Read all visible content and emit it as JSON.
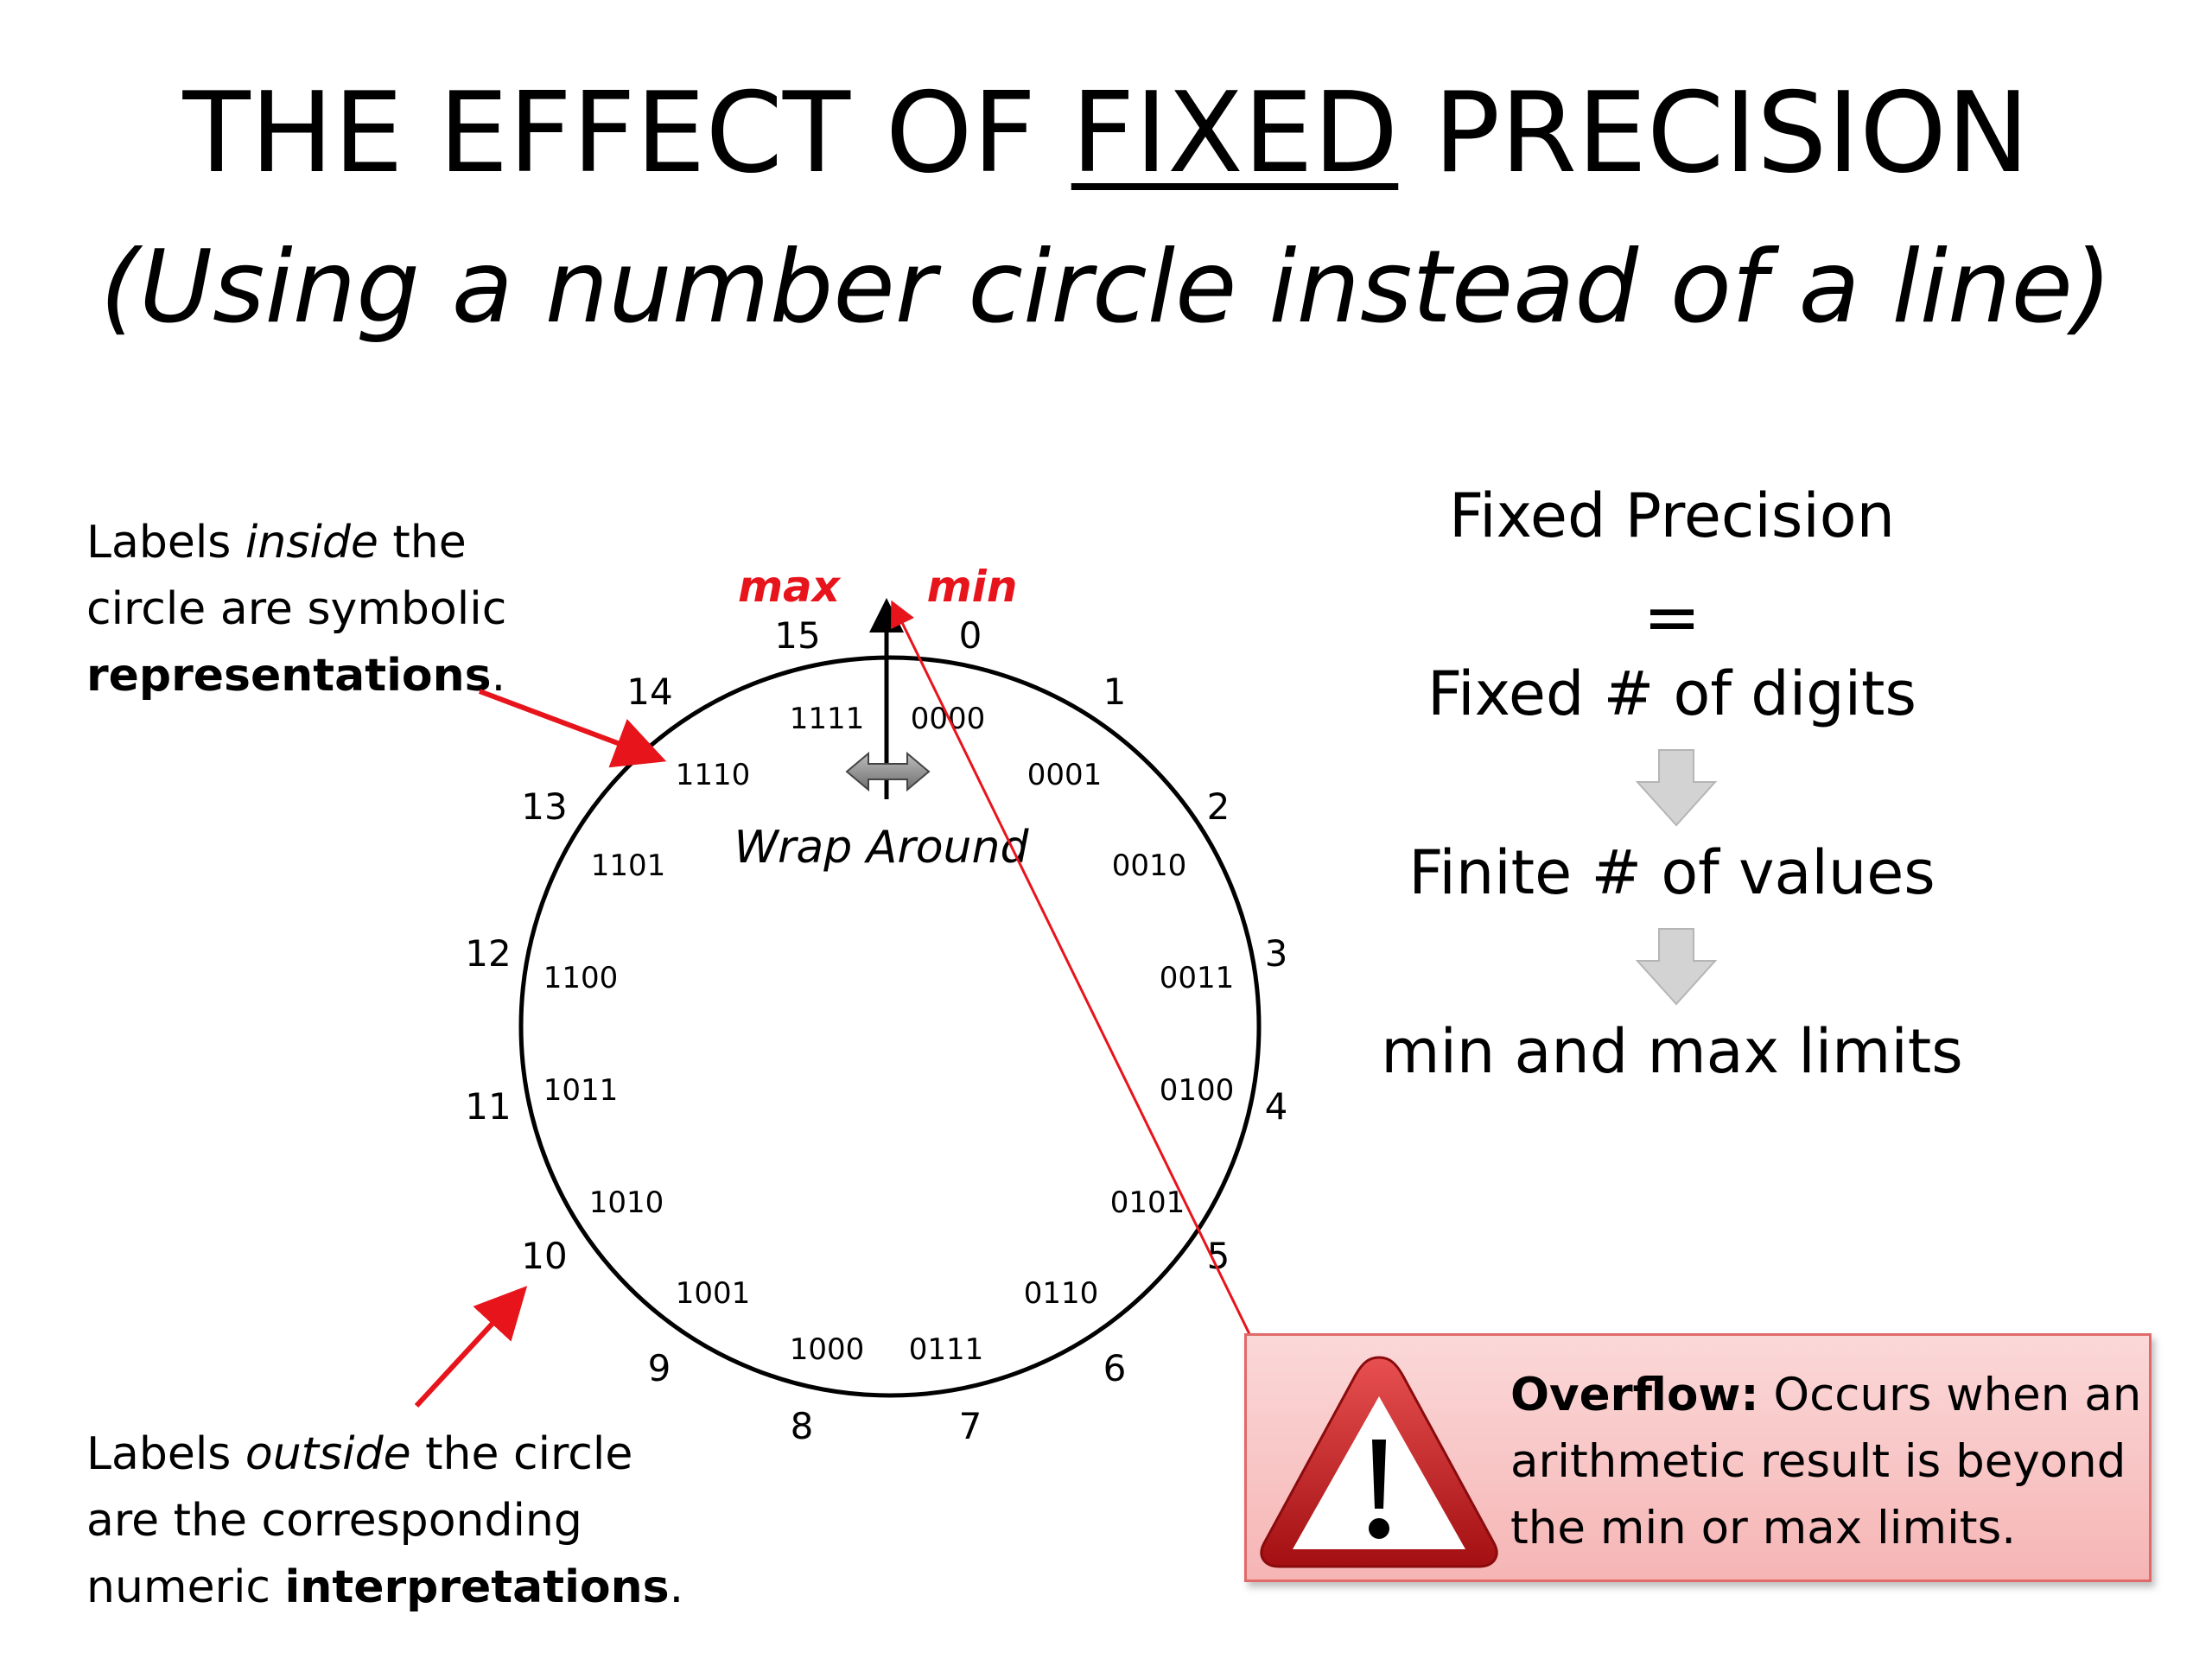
{
  "title": {
    "before": "THE EFFECT OF ",
    "underlined": "FIXED",
    "after": " PRECISION",
    "subtitle": "(Using a number circle instead of a line)"
  },
  "inside_note": {
    "pre": "Labels ",
    "italic": "inside",
    "mid": " the",
    "line2": "circle are symbolic",
    "bold": "representations",
    "end": "."
  },
  "outside_note": {
    "pre": "Labels ",
    "italic": "outside",
    "mid": " the circle",
    "line2": "are the corresponding",
    "line3_pre": "numeric ",
    "bold": "interpretations",
    "end": "."
  },
  "circle": {
    "max_label": "max",
    "min_label": "min",
    "wrap_label": "Wrap Around",
    "numeric": [
      "0",
      "1",
      "2",
      "3",
      "4",
      "5",
      "6",
      "7",
      "8",
      "9",
      "10",
      "11",
      "12",
      "13",
      "14",
      "15"
    ],
    "binary": [
      "0000",
      "0001",
      "0010",
      "0011",
      "0100",
      "0101",
      "0110",
      "0111",
      "1000",
      "1001",
      "1010",
      "1011",
      "1100",
      "1101",
      "1110",
      "1111"
    ]
  },
  "chain": {
    "fixed_precision": "Fixed Precision",
    "equals": "=",
    "fixed_digits": "Fixed # of digits",
    "finite_values": "Finite # of values",
    "limits": "min and  max limits"
  },
  "overflow": {
    "bold": "Overflow:",
    "text": " Occurs when an arithmetic result is beyond the min or max limits.",
    "icon": "warning-icon"
  },
  "colors": {
    "accent_red": "#e8141c",
    "box_border": "#e06a6a"
  }
}
